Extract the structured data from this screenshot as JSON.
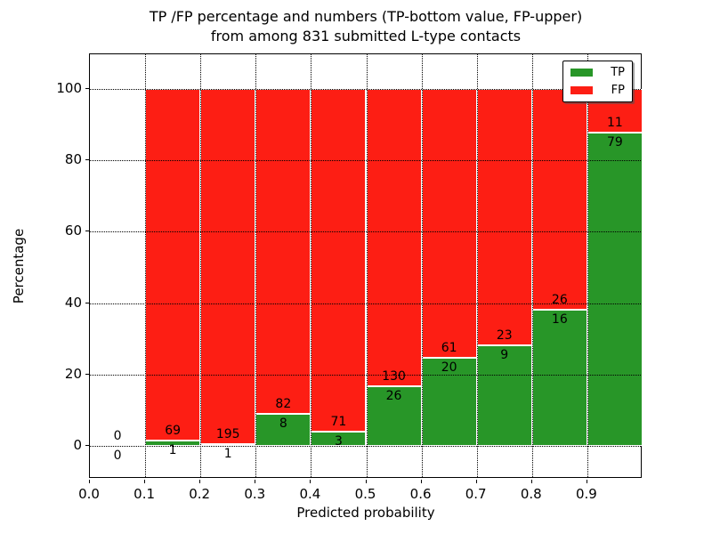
{
  "title": {
    "line1": "TP /FP percentage and numbers (TP-bottom value, FP-upper)",
    "line2": "from among 831 submitted L-type contacts"
  },
  "axes": {
    "xlabel": "Predicted probability",
    "ylabel": "Percentage",
    "x_tick_labels": [
      "0.0",
      "0.1",
      "0.2",
      "0.3",
      "0.4",
      "0.5",
      "0.6",
      "0.7",
      "0.8",
      "0.9"
    ],
    "y_tick_labels": [
      "0",
      "20",
      "40",
      "60",
      "80",
      "100"
    ],
    "y_tick_values": [
      0,
      20,
      40,
      60,
      80,
      100
    ]
  },
  "legend": {
    "position": "upper right",
    "entries": [
      {
        "label": "TP",
        "color": "#289628"
      },
      {
        "label": "FP",
        "color": "#fd1e14"
      }
    ]
  },
  "chart_data": {
    "type": "bar",
    "subtype": "stacked-100-percent",
    "title": "TP /FP percentage and numbers (TP-bottom value, FP-upper) from among 831 submitted L-type contacts",
    "xlabel": "Predicted probability",
    "ylabel": "Percentage",
    "xlim": [
      0.0,
      1.0
    ],
    "ylim": [
      -10,
      110
    ],
    "grid": "dotted",
    "legend_position": "upper right",
    "bin_width": 0.1,
    "total_contacts": 831,
    "series": [
      {
        "name": "TP",
        "color": "#289628"
      },
      {
        "name": "FP",
        "color": "#fd1e14"
      }
    ],
    "bins": [
      {
        "range": [
          0.0,
          0.1
        ],
        "tp": 0,
        "fp": 0
      },
      {
        "range": [
          0.1,
          0.2
        ],
        "tp": 1,
        "fp": 69
      },
      {
        "range": [
          0.2,
          0.3
        ],
        "tp": 1,
        "fp": 195
      },
      {
        "range": [
          0.3,
          0.4
        ],
        "tp": 8,
        "fp": 82
      },
      {
        "range": [
          0.4,
          0.5
        ],
        "tp": 3,
        "fp": 71
      },
      {
        "range": [
          0.5,
          0.6
        ],
        "tp": 26,
        "fp": 130
      },
      {
        "range": [
          0.6,
          0.7
        ],
        "tp": 20,
        "fp": 61
      },
      {
        "range": [
          0.7,
          0.8
        ],
        "tp": 9,
        "fp": 23
      },
      {
        "range": [
          0.8,
          0.9
        ],
        "tp": 16,
        "fp": 26
      },
      {
        "range": [
          0.9,
          1.0
        ],
        "tp": 79,
        "fp": 11
      }
    ]
  }
}
